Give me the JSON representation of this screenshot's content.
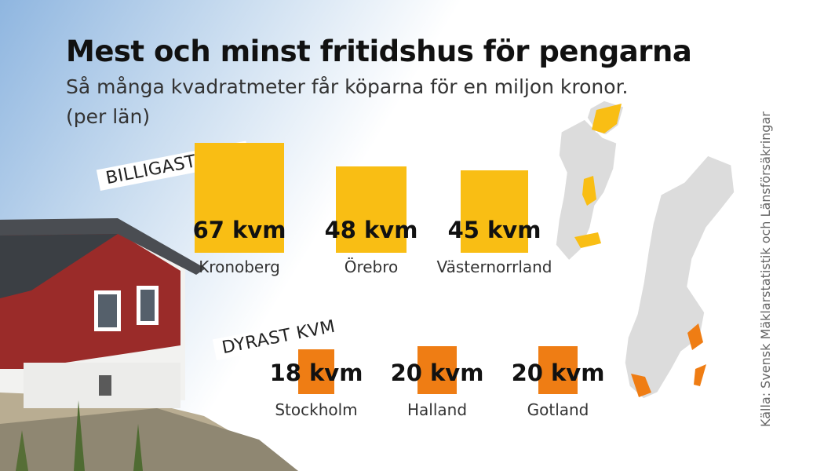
{
  "title": "Mest och minst fritidshus för pengarna",
  "subtitle": "Så många kvadratmeter får köparna för en miljon kronor.",
  "subtitle2": "(per län)",
  "source": "Källa: Svensk Mäklarstatistik och Länsförsäkringar",
  "colors": {
    "billigast": "#f9be14",
    "dyrast": "#ef7d14",
    "map": "#dcdcdc"
  },
  "chart_data": [
    {
      "type": "bar",
      "group_label": "BILLIGAST KVM",
      "unit": "kvm",
      "categories": [
        "Kronoberg",
        "Örebro",
        "Västernorrland"
      ],
      "values": [
        67,
        48,
        45
      ],
      "value_labels": [
        "67 kvm",
        "48 kvm",
        "45 kvm"
      ]
    },
    {
      "type": "bar",
      "group_label": "DYRAST KVM",
      "unit": "kvm",
      "categories": [
        "Stockholm",
        "Halland",
        "Gotland"
      ],
      "values": [
        18,
        20,
        20
      ],
      "value_labels": [
        "18 kvm",
        "20 kvm",
        "20 kvm"
      ]
    }
  ]
}
